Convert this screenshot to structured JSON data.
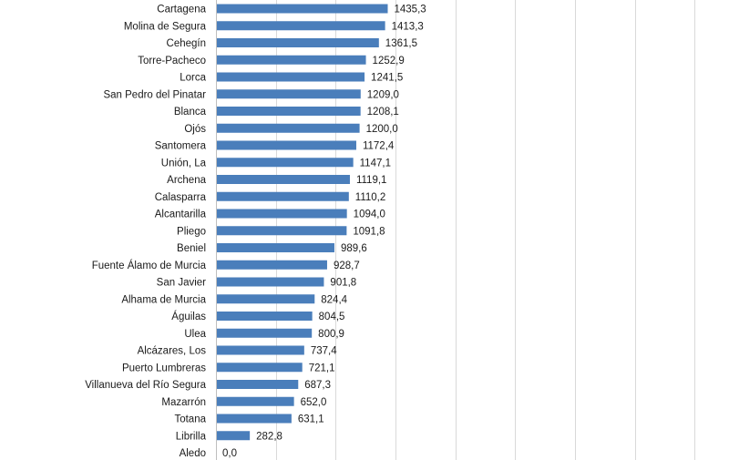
{
  "chart_data": {
    "type": "bar",
    "orientation": "horizontal",
    "categories": [
      "Cartagena",
      "Molina de Segura",
      "Cehegín",
      "Torre-Pacheco",
      "Lorca",
      "San Pedro del Pinatar",
      "Blanca",
      "Ojós",
      "Santomera",
      "Unión, La",
      "Archena",
      "Calasparra",
      "Alcantarilla",
      "Pliego",
      "Beniel",
      "Fuente Álamo de Murcia",
      "San Javier",
      "Alhama de Murcia",
      "Águilas",
      "Ulea",
      "Alcázares, Los",
      "Puerto Lumbreras",
      "Villanueva del Río Segura",
      "Mazarrón",
      "Totana",
      "Librilla",
      "Aledo"
    ],
    "values": [
      1435.3,
      1413.3,
      1361.5,
      1252.9,
      1241.5,
      1209.0,
      1208.1,
      1200.0,
      1172.4,
      1147.1,
      1119.1,
      1110.2,
      1094.0,
      1091.8,
      989.6,
      928.7,
      901.8,
      824.4,
      804.5,
      800.9,
      737.4,
      721.1,
      687.3,
      652.0,
      631.1,
      282.8,
      0.0
    ],
    "value_labels": [
      "1435,3",
      "1413,3",
      "1361,5",
      "1252,9",
      "1241,5",
      "1209,0",
      "1208,1",
      "1200,0",
      "1172,4",
      "1147,1",
      "1119,1",
      "1110,2",
      "1094,0",
      "1091,8",
      "989,6",
      "928,7",
      "901,8",
      "824,4",
      "804,5",
      "800,9",
      "737,4",
      "721,1",
      "687,3",
      "652,0",
      "631,1",
      "282,8",
      "0,0"
    ],
    "xlim": [
      0,
      4500
    ],
    "grid": true,
    "bar_color": "#4a7ebb",
    "title": "",
    "xlabel": "",
    "ylabel": ""
  }
}
